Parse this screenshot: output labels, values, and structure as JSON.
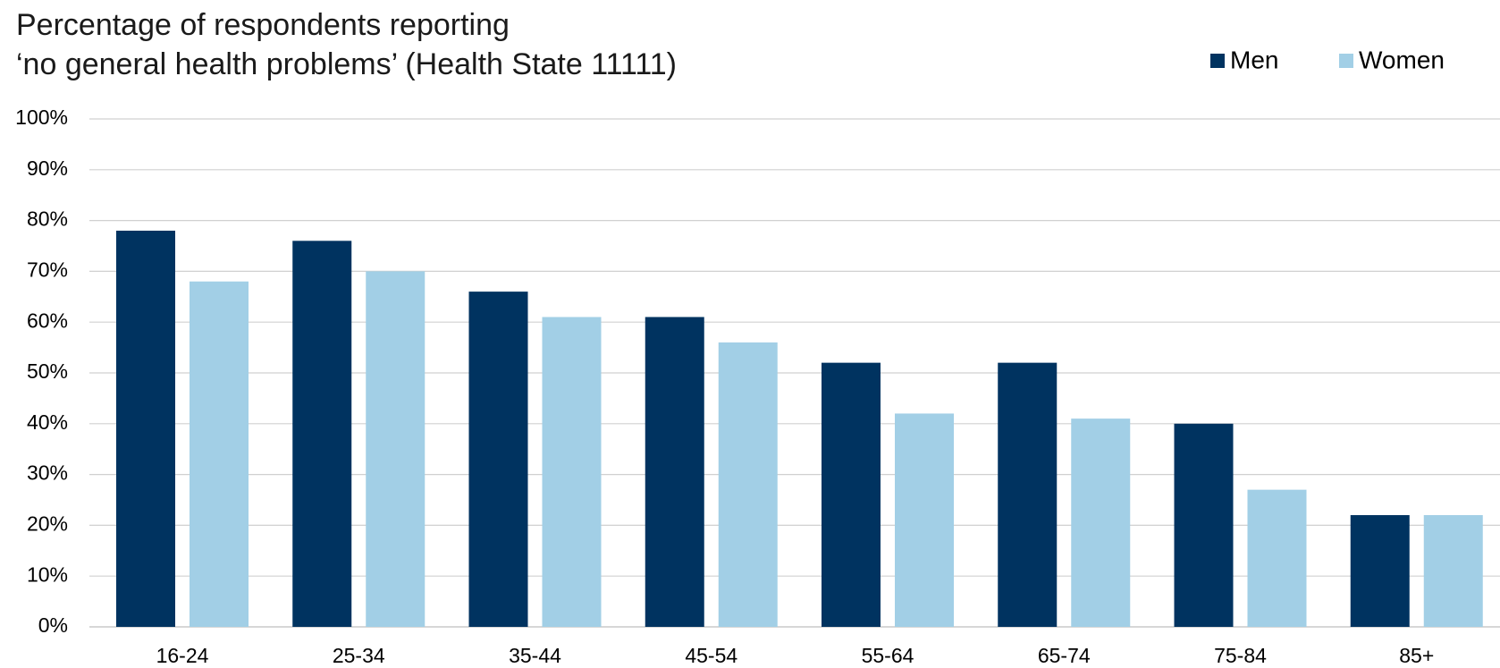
{
  "chart_data": {
    "type": "bar",
    "title": [
      "Percentage of respondents reporting",
      "‘no general health problems’ (Health State 11111)"
    ],
    "categories": [
      "16-24",
      "25-34",
      "35-44",
      "45-54",
      "55-64",
      "65-74",
      "75-84",
      "85+"
    ],
    "series": [
      {
        "name": "Men",
        "color": "#003360",
        "values": [
          78,
          76,
          66,
          61,
          52,
          52,
          40,
          22
        ]
      },
      {
        "name": "Women",
        "color": "#a2cfe6",
        "values": [
          68,
          70,
          61,
          56,
          42,
          41,
          27,
          22
        ]
      }
    ],
    "ylim": [
      0,
      100
    ],
    "yticks": [
      {
        "value": 0,
        "label": "0%"
      },
      {
        "value": 10,
        "label": "10%"
      },
      {
        "value": 20,
        "label": "20%"
      },
      {
        "value": 30,
        "label": "30%"
      },
      {
        "value": 40,
        "label": "40%"
      },
      {
        "value": 50,
        "label": "50%"
      },
      {
        "value": 60,
        "label": "60%"
      },
      {
        "value": 70,
        "label": "70%"
      },
      {
        "value": 80,
        "label": "80%"
      },
      {
        "value": 90,
        "label": "90%"
      },
      {
        "value": 100,
        "label": "100%"
      }
    ],
    "grid": true,
    "legend": "top-right"
  }
}
